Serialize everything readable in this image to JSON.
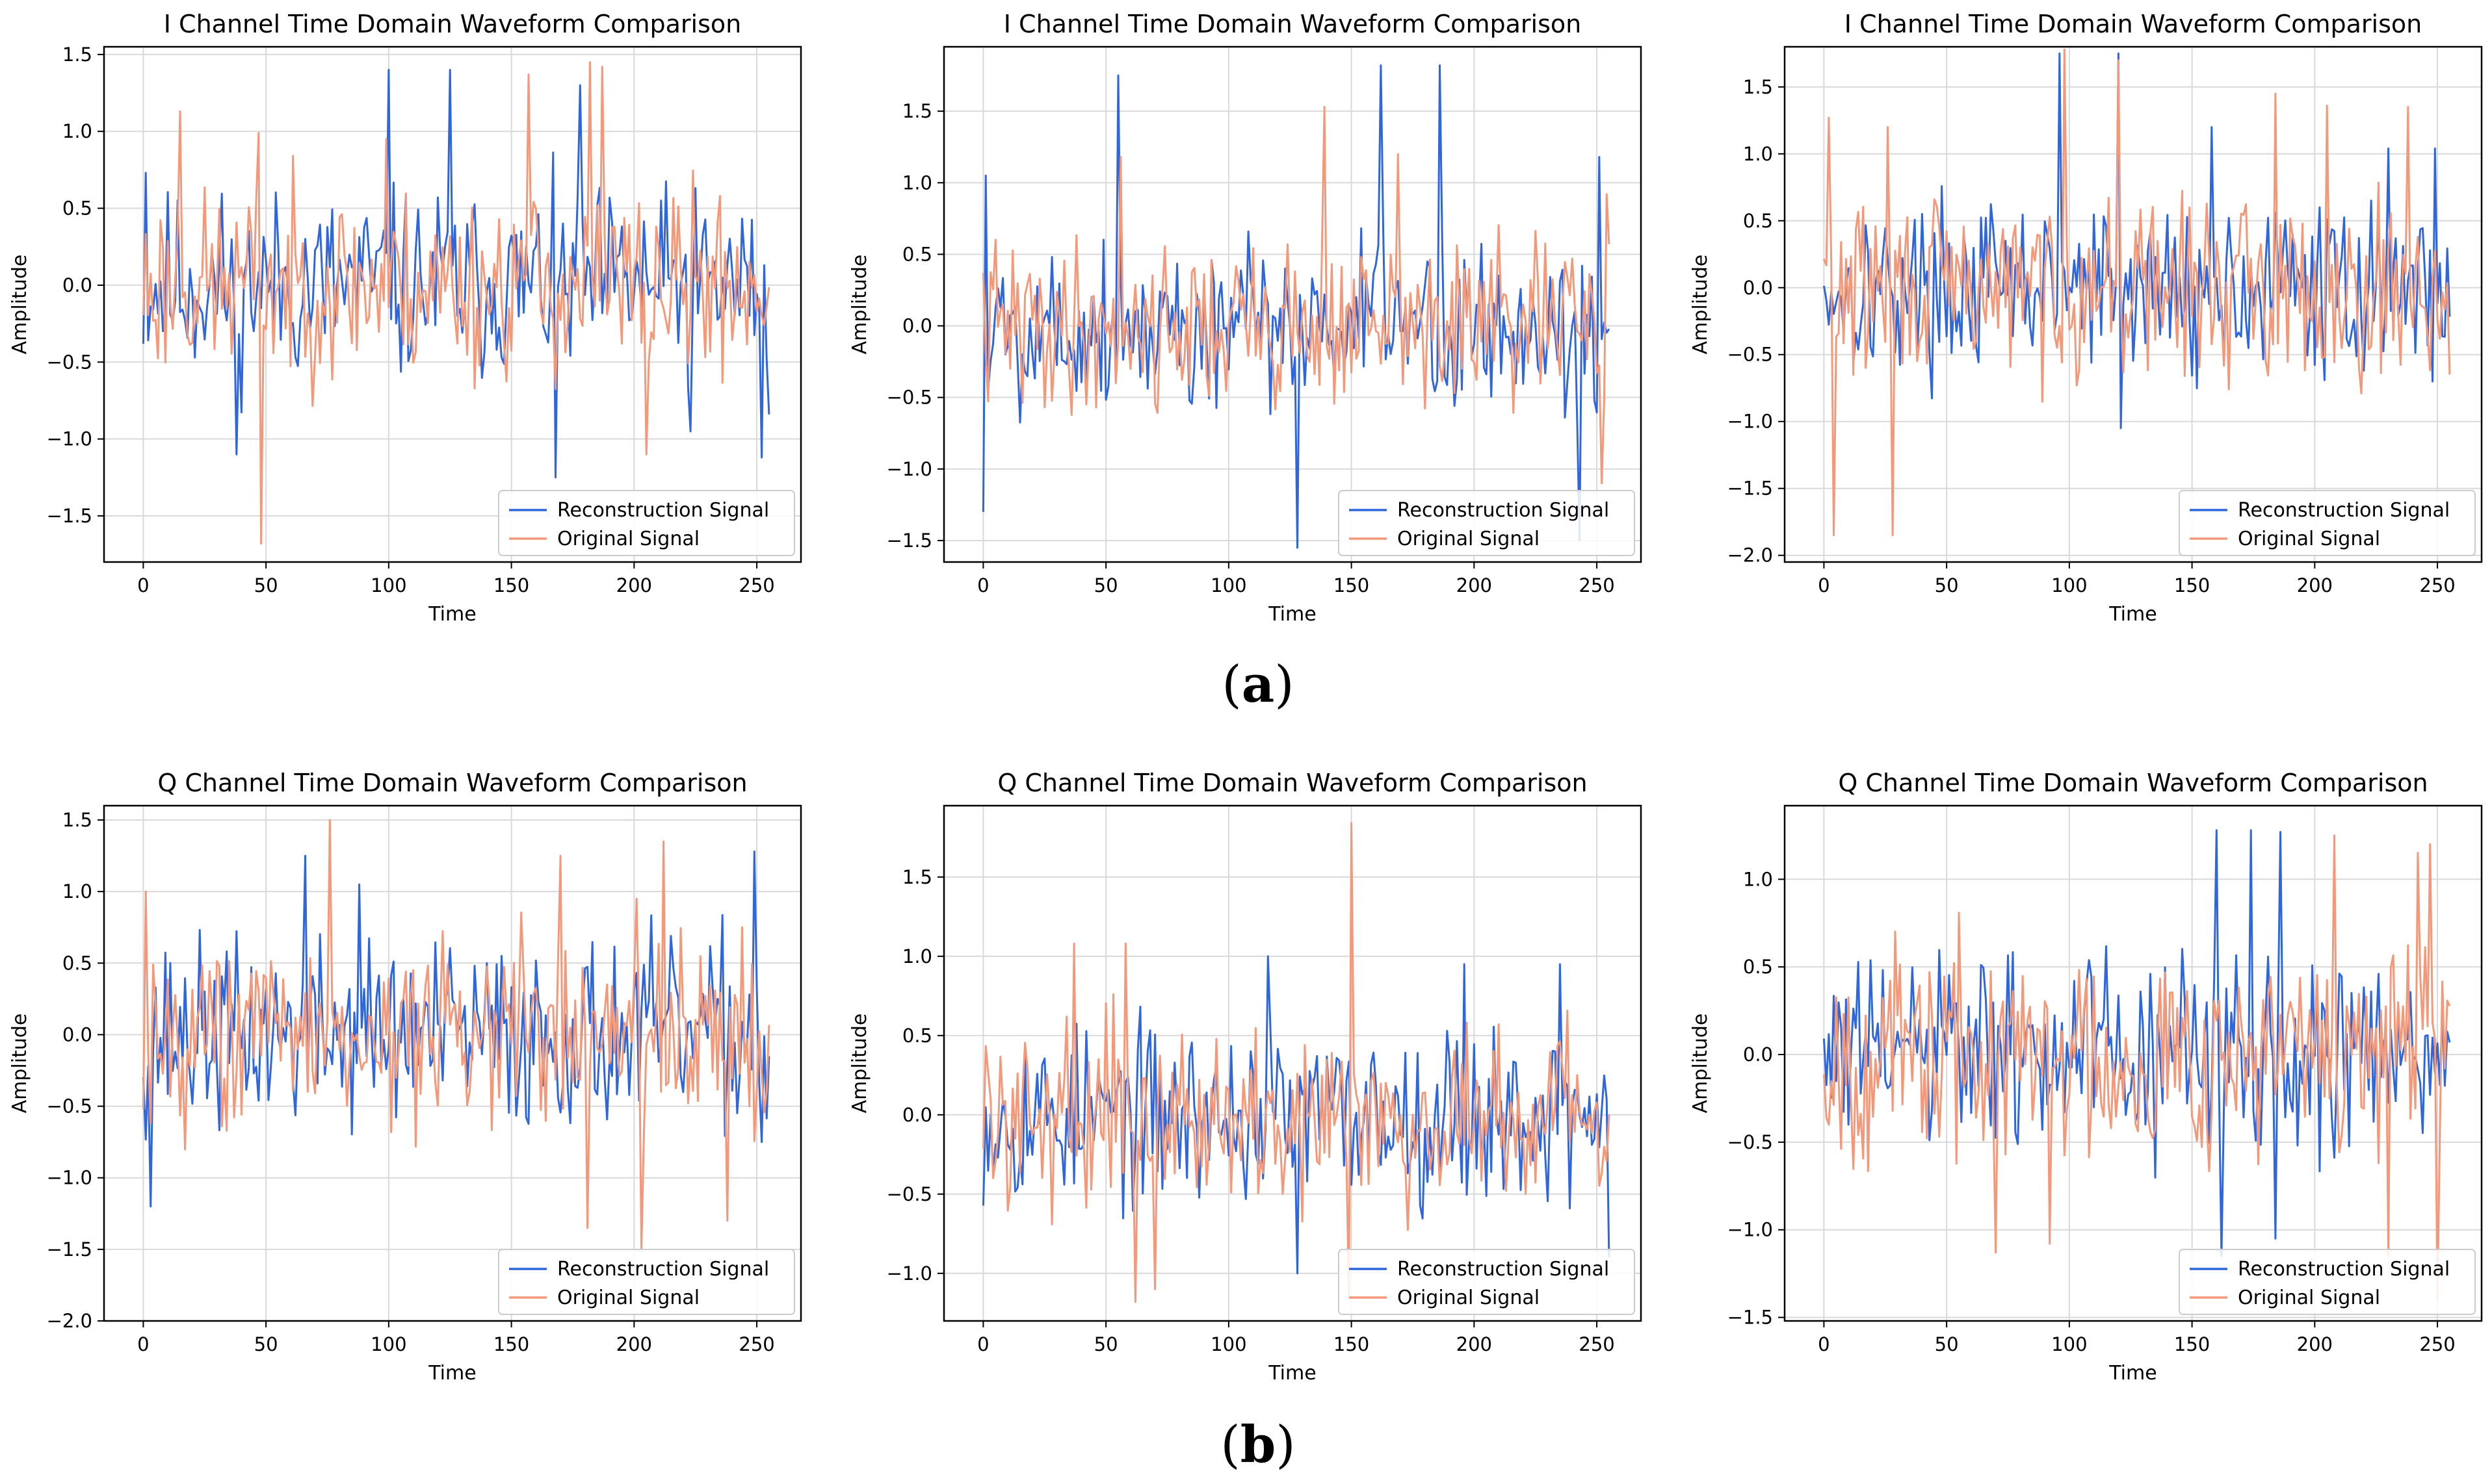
{
  "figure": {
    "panel_labels": [
      {
        "open": "(",
        "letter": "a",
        "close": ")"
      },
      {
        "open": "(",
        "letter": "b",
        "close": ")"
      }
    ],
    "colors": {
      "reconstruction": "#2f66dc",
      "original": "#f4987a",
      "grid": "#d9d9d9",
      "frame": "#000000"
    }
  },
  "chart_data": [
    {
      "type": "line",
      "title": "I Channel Time Domain Waveform Comparison",
      "xlabel": "Time",
      "ylabel": "Amplitude",
      "xlim": [
        -16,
        268
      ],
      "ylim": [
        -1.8,
        1.55
      ],
      "xticks": [
        0,
        50,
        100,
        150,
        200,
        250
      ],
      "xtick_labels": [
        "0",
        "50",
        "100",
        "150",
        "200",
        "250"
      ],
      "yticks": [
        -1.5,
        -1.0,
        -0.5,
        0.0,
        0.5,
        1.0,
        1.5
      ],
      "ytick_labels": [
        "−1.5",
        "−1.0",
        "−0.5",
        "0.0",
        "0.5",
        "1.0",
        "1.5"
      ],
      "grid": true,
      "legend": [
        "Reconstruction Signal",
        "Original Signal"
      ],
      "legend_position": "lower-right",
      "series": [
        {
          "name": "Reconstruction Signal",
          "n": 256,
          "amp": 0.42,
          "seed": 11,
          "spikes": [
            [
              1,
              0.73
            ],
            [
              38,
              -1.1
            ],
            [
              100,
              1.4
            ],
            [
              125,
              1.4
            ],
            [
              168,
              -1.25
            ],
            [
              178,
              1.3
            ],
            [
              223,
              -0.95
            ],
            [
              252,
              -1.12
            ],
            [
              255,
              -0.84
            ]
          ]
        },
        {
          "name": "Original Signal",
          "n": 256,
          "amp": 0.42,
          "seed": 23,
          "spikes": [
            [
              15,
              1.13
            ],
            [
              47,
              0.99
            ],
            [
              48,
              -1.68
            ],
            [
              99,
              0.95
            ],
            [
              157,
              1.37
            ],
            [
              182,
              1.45
            ],
            [
              187,
              1.42
            ],
            [
              205,
              -1.1
            ]
          ]
        }
      ]
    },
    {
      "type": "line",
      "title": "I Channel Time Domain Waveform Comparison",
      "xlabel": "Time",
      "ylabel": "Amplitude",
      "xlim": [
        -16,
        268
      ],
      "ylim": [
        -1.65,
        1.95
      ],
      "xticks": [
        0,
        50,
        100,
        150,
        200,
        250
      ],
      "xtick_labels": [
        "0",
        "50",
        "100",
        "150",
        "200",
        "250"
      ],
      "yticks": [
        -1.5,
        -1.0,
        -0.5,
        0.0,
        0.5,
        1.0,
        1.5
      ],
      "ytick_labels": [
        "−1.5",
        "−1.0",
        "−0.5",
        "0.0",
        "0.5",
        "1.0",
        "1.5"
      ],
      "grid": true,
      "legend": [
        "Reconstruction Signal",
        "Original Signal"
      ],
      "legend_position": "lower-right",
      "series": [
        {
          "name": "Reconstruction Signal",
          "n": 256,
          "amp": 0.42,
          "seed": 5,
          "spikes": [
            [
              0,
              -1.3
            ],
            [
              1,
              1.05
            ],
            [
              55,
              1.75
            ],
            [
              128,
              -1.55
            ],
            [
              162,
              1.82
            ],
            [
              186,
              1.82
            ],
            [
              243,
              -1.5
            ],
            [
              251,
              1.18
            ]
          ]
        },
        {
          "name": "Original Signal",
          "n": 256,
          "amp": 0.4,
          "seed": 41,
          "spikes": [
            [
              56,
              1.18
            ],
            [
              139,
              1.53
            ],
            [
              169,
              1.2
            ],
            [
              252,
              -1.1
            ],
            [
              254,
              0.92
            ]
          ]
        }
      ]
    },
    {
      "type": "line",
      "title": "I Channel Time Domain Waveform Comparison",
      "xlabel": "Time",
      "ylabel": "Amplitude",
      "xlim": [
        -16,
        268
      ],
      "ylim": [
        -2.05,
        1.8
      ],
      "xticks": [
        0,
        50,
        100,
        150,
        200,
        250
      ],
      "xtick_labels": [
        "0",
        "50",
        "100",
        "150",
        "200",
        "250"
      ],
      "yticks": [
        -2.0,
        -1.5,
        -1.0,
        -0.5,
        0.0,
        0.5,
        1.0,
        1.5
      ],
      "ytick_labels": [
        "−2.0",
        "−1.5",
        "−1.0",
        "−0.5",
        "0.0",
        "0.5",
        "1.0",
        "1.5"
      ],
      "grid": true,
      "legend": [
        "Reconstruction Signal",
        "Original Signal"
      ],
      "legend_position": "lower-right",
      "series": [
        {
          "name": "Reconstruction Signal",
          "n": 256,
          "amp": 0.42,
          "seed": 17,
          "spikes": [
            [
              96,
              1.75
            ],
            [
              120,
              1.75
            ],
            [
              121,
              -1.05
            ],
            [
              158,
              1.2
            ],
            [
              230,
              1.04
            ],
            [
              249,
              1.04
            ]
          ]
        },
        {
          "name": "Original Signal",
          "n": 256,
          "amp": 0.45,
          "seed": 29,
          "spikes": [
            [
              2,
              1.27
            ],
            [
              4,
              -1.85
            ],
            [
              28,
              -1.85
            ],
            [
              26,
              1.2
            ],
            [
              98,
              1.78
            ],
            [
              120,
              1.7
            ],
            [
              184,
              1.45
            ],
            [
              205,
              1.36
            ],
            [
              238,
              1.35
            ],
            [
              255,
              -0.65
            ]
          ]
        }
      ]
    },
    {
      "type": "line",
      "title": "Q Channel Time Domain Waveform Comparison",
      "xlabel": "Time",
      "ylabel": "Amplitude",
      "xlim": [
        -16,
        268
      ],
      "ylim": [
        -2.0,
        1.6
      ],
      "xticks": [
        0,
        50,
        100,
        150,
        200,
        250
      ],
      "xtick_labels": [
        "0",
        "50",
        "100",
        "150",
        "200",
        "250"
      ],
      "yticks": [
        -2.0,
        -1.5,
        -1.0,
        -0.5,
        0.0,
        0.5,
        1.0,
        1.5
      ],
      "ytick_labels": [
        "−2.0",
        "−1.5",
        "−1.0",
        "−0.5",
        "0.0",
        "0.5",
        "1.0",
        "1.5"
      ],
      "grid": true,
      "legend": [
        "Reconstruction Signal",
        "Original Signal"
      ],
      "legend_position": "lower-right",
      "series": [
        {
          "name": "Reconstruction Signal",
          "n": 256,
          "amp": 0.45,
          "seed": 37,
          "spikes": [
            [
              3,
              -1.2
            ],
            [
              66,
              1.25
            ],
            [
              88,
              1.05
            ],
            [
              249,
              1.28
            ],
            [
              252,
              -0.75
            ]
          ]
        },
        {
          "name": "Original Signal",
          "n": 256,
          "amp": 0.45,
          "seed": 43,
          "spikes": [
            [
              1,
              1.0
            ],
            [
              76,
              1.5
            ],
            [
              170,
              1.25
            ],
            [
              181,
              -1.35
            ],
            [
              203,
              -1.5
            ],
            [
              212,
              1.35
            ],
            [
              238,
              -1.3
            ],
            [
              201,
              0.95
            ]
          ]
        }
      ]
    },
    {
      "type": "line",
      "title": "Q Channel Time Domain Waveform Comparison",
      "xlabel": "Time",
      "ylabel": "Amplitude",
      "xlim": [
        -16,
        268
      ],
      "ylim": [
        -1.3,
        1.95
      ],
      "xticks": [
        0,
        50,
        100,
        150,
        200,
        250
      ],
      "xtick_labels": [
        "0",
        "50",
        "100",
        "150",
        "200",
        "250"
      ],
      "yticks": [
        -1.0,
        -0.5,
        0.0,
        0.5,
        1.0,
        1.5
      ],
      "ytick_labels": [
        "−1.0",
        "−0.5",
        "0.0",
        "0.5",
        "1.0",
        "1.5"
      ],
      "grid": true,
      "legend": [
        "Reconstruction Signal",
        "Original Signal"
      ],
      "legend_position": "lower-right",
      "series": [
        {
          "name": "Reconstruction Signal",
          "n": 256,
          "amp": 0.38,
          "seed": 53,
          "spikes": [
            [
              116,
              1.0
            ],
            [
              196,
              0.95
            ],
            [
              235,
              0.95
            ],
            [
              255,
              -0.9
            ],
            [
              128,
              -1.0
            ]
          ]
        },
        {
          "name": "Original Signal",
          "n": 256,
          "amp": 0.38,
          "seed": 59,
          "spikes": [
            [
              37,
              1.08
            ],
            [
              58,
              1.08
            ],
            [
              150,
              1.84
            ],
            [
              62,
              -1.18
            ],
            [
              70,
              -1.1
            ],
            [
              149,
              -1.15
            ]
          ]
        }
      ]
    },
    {
      "type": "line",
      "title": "Q Channel Time Domain Waveform Comparison",
      "xlabel": "Time",
      "ylabel": "Amplitude",
      "xlim": [
        -16,
        268
      ],
      "ylim": [
        -1.52,
        1.42
      ],
      "xticks": [
        0,
        50,
        100,
        150,
        200,
        250
      ],
      "xtick_labels": [
        "0",
        "50",
        "100",
        "150",
        "200",
        "250"
      ],
      "yticks": [
        -1.5,
        -1.0,
        -0.5,
        0.0,
        0.5,
        1.0
      ],
      "ytick_labels": [
        "−1.5",
        "−1.0",
        "−0.5",
        "0.0",
        "0.5",
        "1.0"
      ],
      "grid": true,
      "legend": [
        "Reconstruction Signal",
        "Original Signal"
      ],
      "legend_position": "lower-right",
      "series": [
        {
          "name": "Reconstruction Signal",
          "n": 256,
          "amp": 0.4,
          "seed": 61,
          "spikes": [
            [
              160,
              1.28
            ],
            [
              162,
              -1.15
            ],
            [
              174,
              1.28
            ],
            [
              186,
              1.27
            ],
            [
              184,
              -1.05
            ]
          ]
        },
        {
          "name": "Original Signal",
          "n": 256,
          "amp": 0.42,
          "seed": 67,
          "spikes": [
            [
              70,
              -1.13
            ],
            [
              92,
              -1.08
            ],
            [
              208,
              1.25
            ],
            [
              242,
              1.15
            ],
            [
              247,
              1.2
            ],
            [
              250,
              -1.4
            ],
            [
              230,
              -1.15
            ]
          ]
        }
      ]
    }
  ]
}
